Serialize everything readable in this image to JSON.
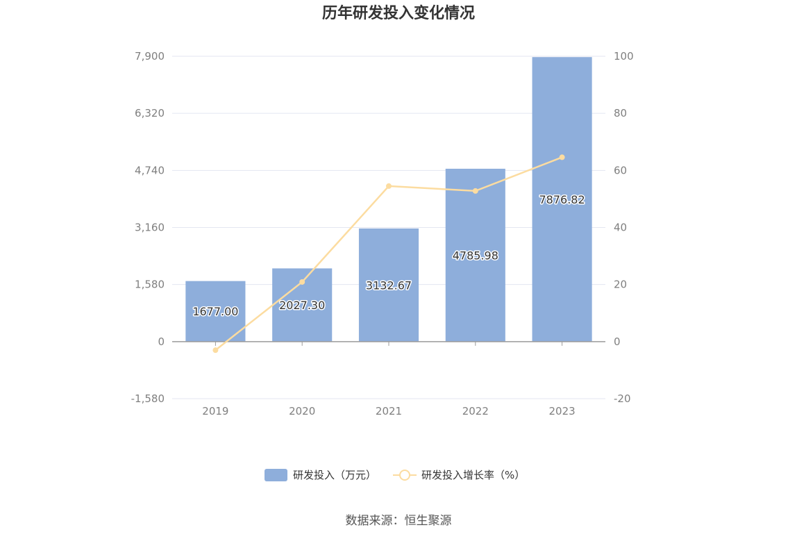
{
  "chart_data": {
    "type": "bar",
    "title": "历年研发投入变化情况",
    "categories": [
      "2019",
      "2020",
      "2021",
      "2022",
      "2023"
    ],
    "series": [
      {
        "name": "研发投入（万元）",
        "type": "bar",
        "axis": "left",
        "values": [
          1677.0,
          2027.3,
          3132.67,
          4785.98,
          7876.82
        ],
        "labels": [
          "1677.00",
          "2027.30",
          "3132.67",
          "4785.98",
          "7876.82"
        ],
        "color": "#8eaedb"
      },
      {
        "name": "研发投入增长率（%）",
        "type": "line",
        "axis": "right",
        "values": [
          -3.0,
          20.9,
          54.5,
          52.8,
          64.6
        ],
        "color": "#fcdca0"
      }
    ],
    "y_left": {
      "min": -1580,
      "max": 7900,
      "ticks": [
        -1580,
        0,
        1580,
        3160,
        4740,
        6320,
        7900
      ],
      "tick_labels": [
        "-1,580",
        "0",
        "1,580",
        "3,160",
        "4,740",
        "6,320",
        "7,900"
      ]
    },
    "y_right": {
      "min": -20,
      "max": 100,
      "ticks": [
        -20,
        0,
        20,
        40,
        60,
        80,
        100
      ],
      "tick_labels": [
        "-20",
        "0",
        "20",
        "40",
        "60",
        "80",
        "100"
      ]
    },
    "grid": true,
    "legend_position": "bottom",
    "source": "数据来源：恒生聚源"
  }
}
